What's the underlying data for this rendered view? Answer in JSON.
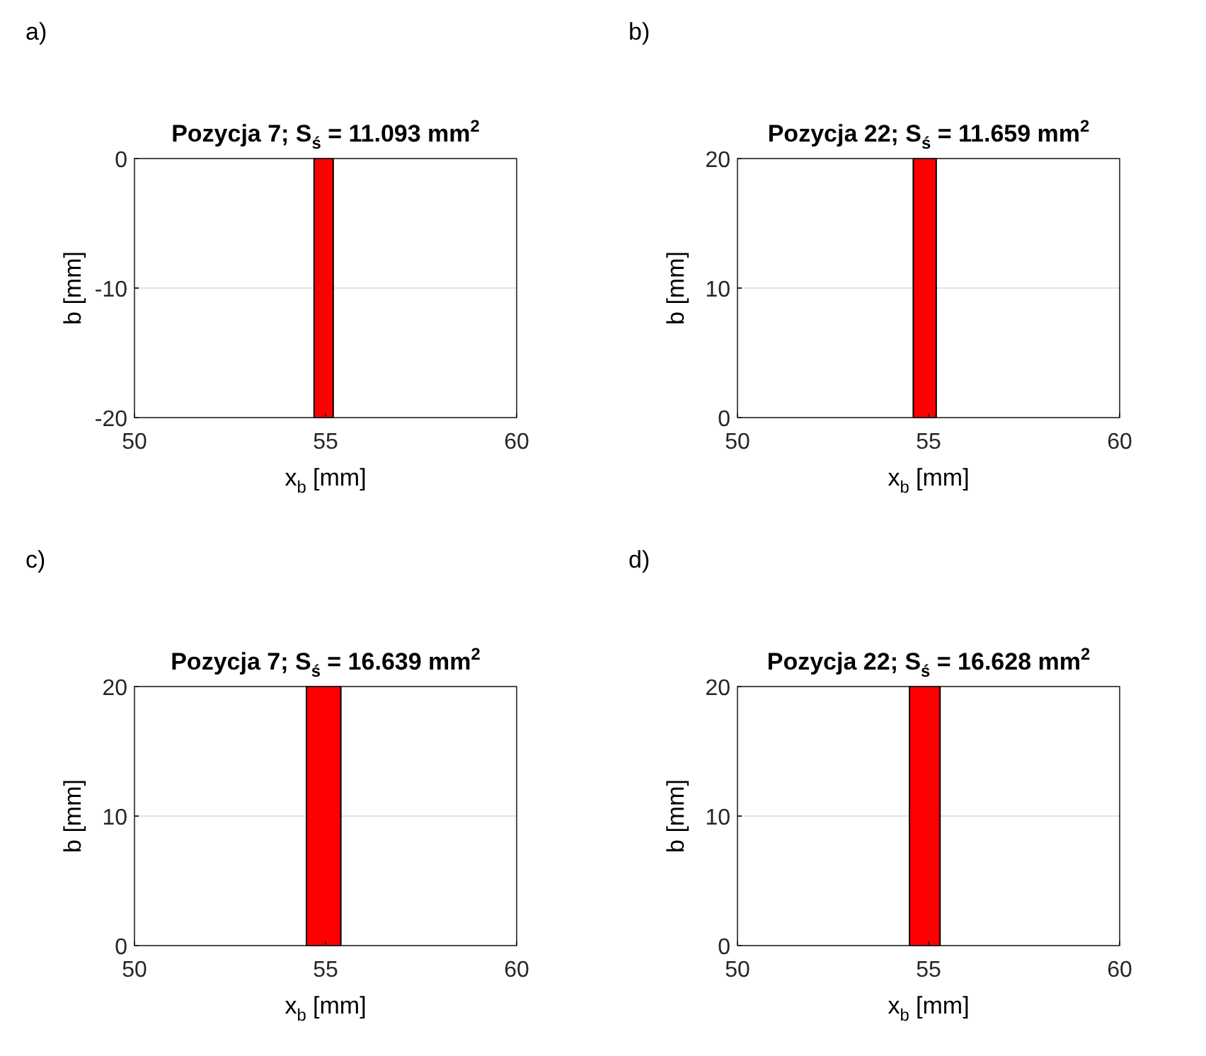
{
  "chart_data": [
    {
      "type": "area",
      "title": "Pozycja 7; S$_{ś}$ = 11.093 mm$^{2}$",
      "xlabel": "x$_{b}$ [mm]",
      "ylabel": "b [mm]",
      "annotations": [
        "a)"
      ],
      "bands": [
        {
          "axis": "x",
          "from": 54.7,
          "to": 55.2,
          "color": "#ff0000"
        }
      ],
      "xlim": [
        50,
        60
      ],
      "xticks": [
        50,
        55,
        60
      ],
      "ylim": [
        -20,
        0
      ],
      "yticks": [
        -20,
        -10,
        0
      ],
      "grid": "y"
    },
    {
      "type": "area",
      "title": "Pozycja 22; S$_{ś}$ = 11.659 mm$^{2}$",
      "xlabel": "x$_{b}$ [mm]",
      "ylabel": "b [mm]",
      "annotations": [
        "b)"
      ],
      "bands": [
        {
          "axis": "x",
          "from": 54.6,
          "to": 55.2,
          "color": "#ff0000"
        }
      ],
      "xlim": [
        50,
        60
      ],
      "xticks": [
        50,
        55,
        60
      ],
      "ylim": [
        0,
        20
      ],
      "yticks": [
        0,
        10,
        20
      ],
      "grid": "y"
    },
    {
      "type": "area",
      "title": "Pozycja 7; S$_{ś}$ = 16.639 mm$^{2}$",
      "xlabel": "x$_{b}$ [mm]",
      "ylabel": "b [mm]",
      "annotations": [
        "c)"
      ],
      "bands": [
        {
          "axis": "x",
          "from": 54.5,
          "to": 55.4,
          "color": "#ff0000"
        }
      ],
      "xlim": [
        50,
        60
      ],
      "xticks": [
        50,
        55,
        60
      ],
      "ylim": [
        0,
        20
      ],
      "yticks": [
        0,
        10,
        20
      ],
      "grid": "y"
    },
    {
      "type": "area",
      "title": "Pozycja 22; S$_{ś}$ = 16.628 mm$^{2}$",
      "xlabel": "x$_{b}$ [mm]",
      "ylabel": "b [mm]",
      "annotations": [
        "d)"
      ],
      "bands": [
        {
          "axis": "x",
          "from": 54.5,
          "to": 55.3,
          "color": "#ff0000"
        }
      ],
      "xlim": [
        50,
        60
      ],
      "xticks": [
        50,
        55,
        60
      ],
      "ylim": [
        0,
        20
      ],
      "yticks": [
        0,
        10,
        20
      ],
      "grid": "y"
    }
  ]
}
